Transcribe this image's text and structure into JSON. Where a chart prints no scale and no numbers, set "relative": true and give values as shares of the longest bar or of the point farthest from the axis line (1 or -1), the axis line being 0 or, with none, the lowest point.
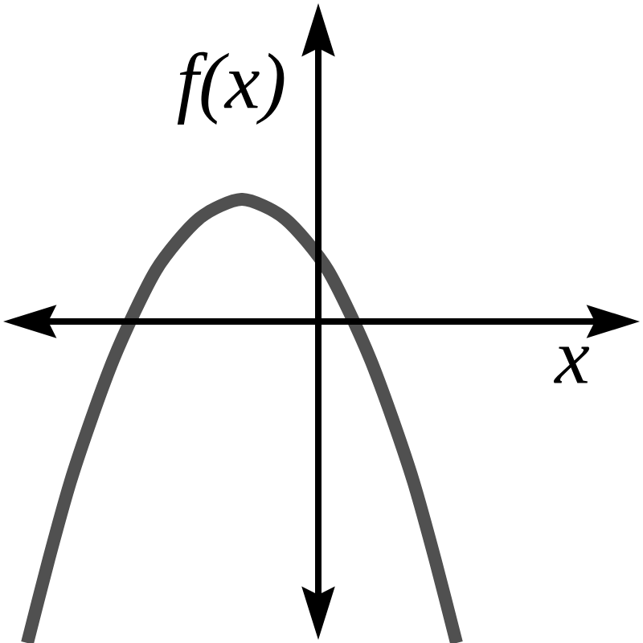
{
  "chart_data": {
    "type": "line",
    "relative": true,
    "categories": [
      null,
      null,
      null,
      null,
      null,
      null,
      null,
      null,
      null,
      null,
      null,
      null,
      null,
      null,
      null,
      null,
      null,
      null,
      null,
      null,
      null
    ],
    "values": [
      -1.0,
      -0.74,
      -0.5,
      -0.3,
      -0.12,
      0.03,
      0.16,
      0.25,
      0.32,
      0.36,
      0.38,
      0.36,
      0.32,
      0.25,
      0.16,
      0.03,
      -0.12,
      -0.3,
      -0.5,
      -0.74,
      -1.0
    ],
    "color": "#505050",
    "xlabel": "x",
    "ylabel": "f(x)"
  }
}
